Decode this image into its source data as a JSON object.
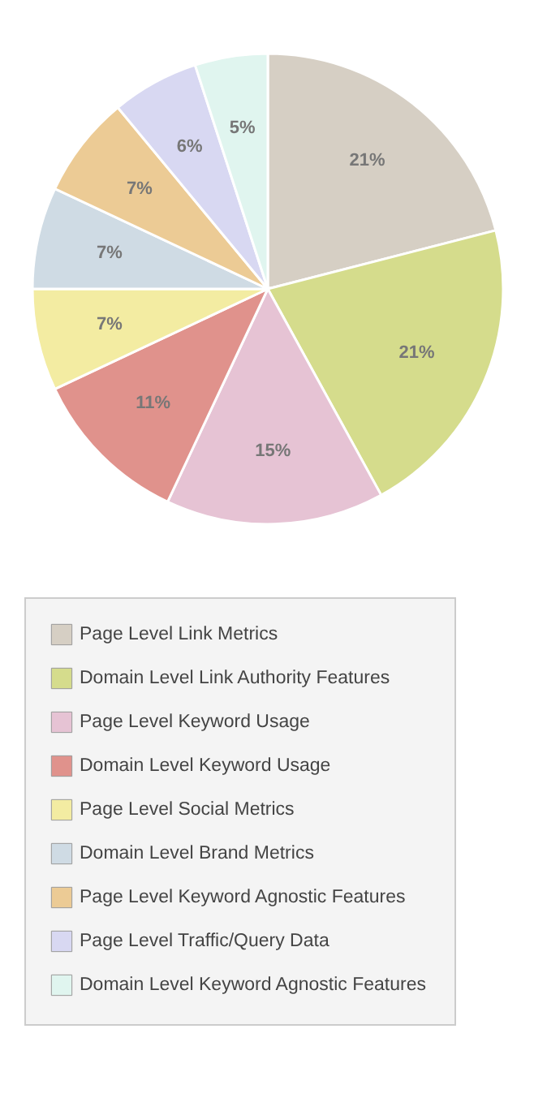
{
  "chart_data": {
    "type": "pie",
    "categories": [
      "Page Level Link Metrics",
      "Domain Level Link Authority Features",
      "Page Level Keyword Usage",
      "Domain Level Keyword Usage",
      "Page Level Social Metrics",
      "Domain Level Brand Metrics",
      "Page Level Keyword Agnostic Features",
      "Page Level Traffic/Query Data",
      "Domain Level Keyword Agnostic Features"
    ],
    "values": [
      21,
      21,
      15,
      11,
      7,
      7,
      7,
      6,
      5
    ],
    "value_labels": [
      "21%",
      "21%",
      "15%",
      "11%",
      "7%",
      "7%",
      "7%",
      "6%",
      "5%"
    ],
    "colors": [
      "#d6cfc4",
      "#d5dc8c",
      "#e6c3d4",
      "#e0928c",
      "#f3eca2",
      "#cfdbe4",
      "#eccb95",
      "#d8d8f2",
      "#e0f5ef"
    ],
    "legend": "bottom"
  }
}
